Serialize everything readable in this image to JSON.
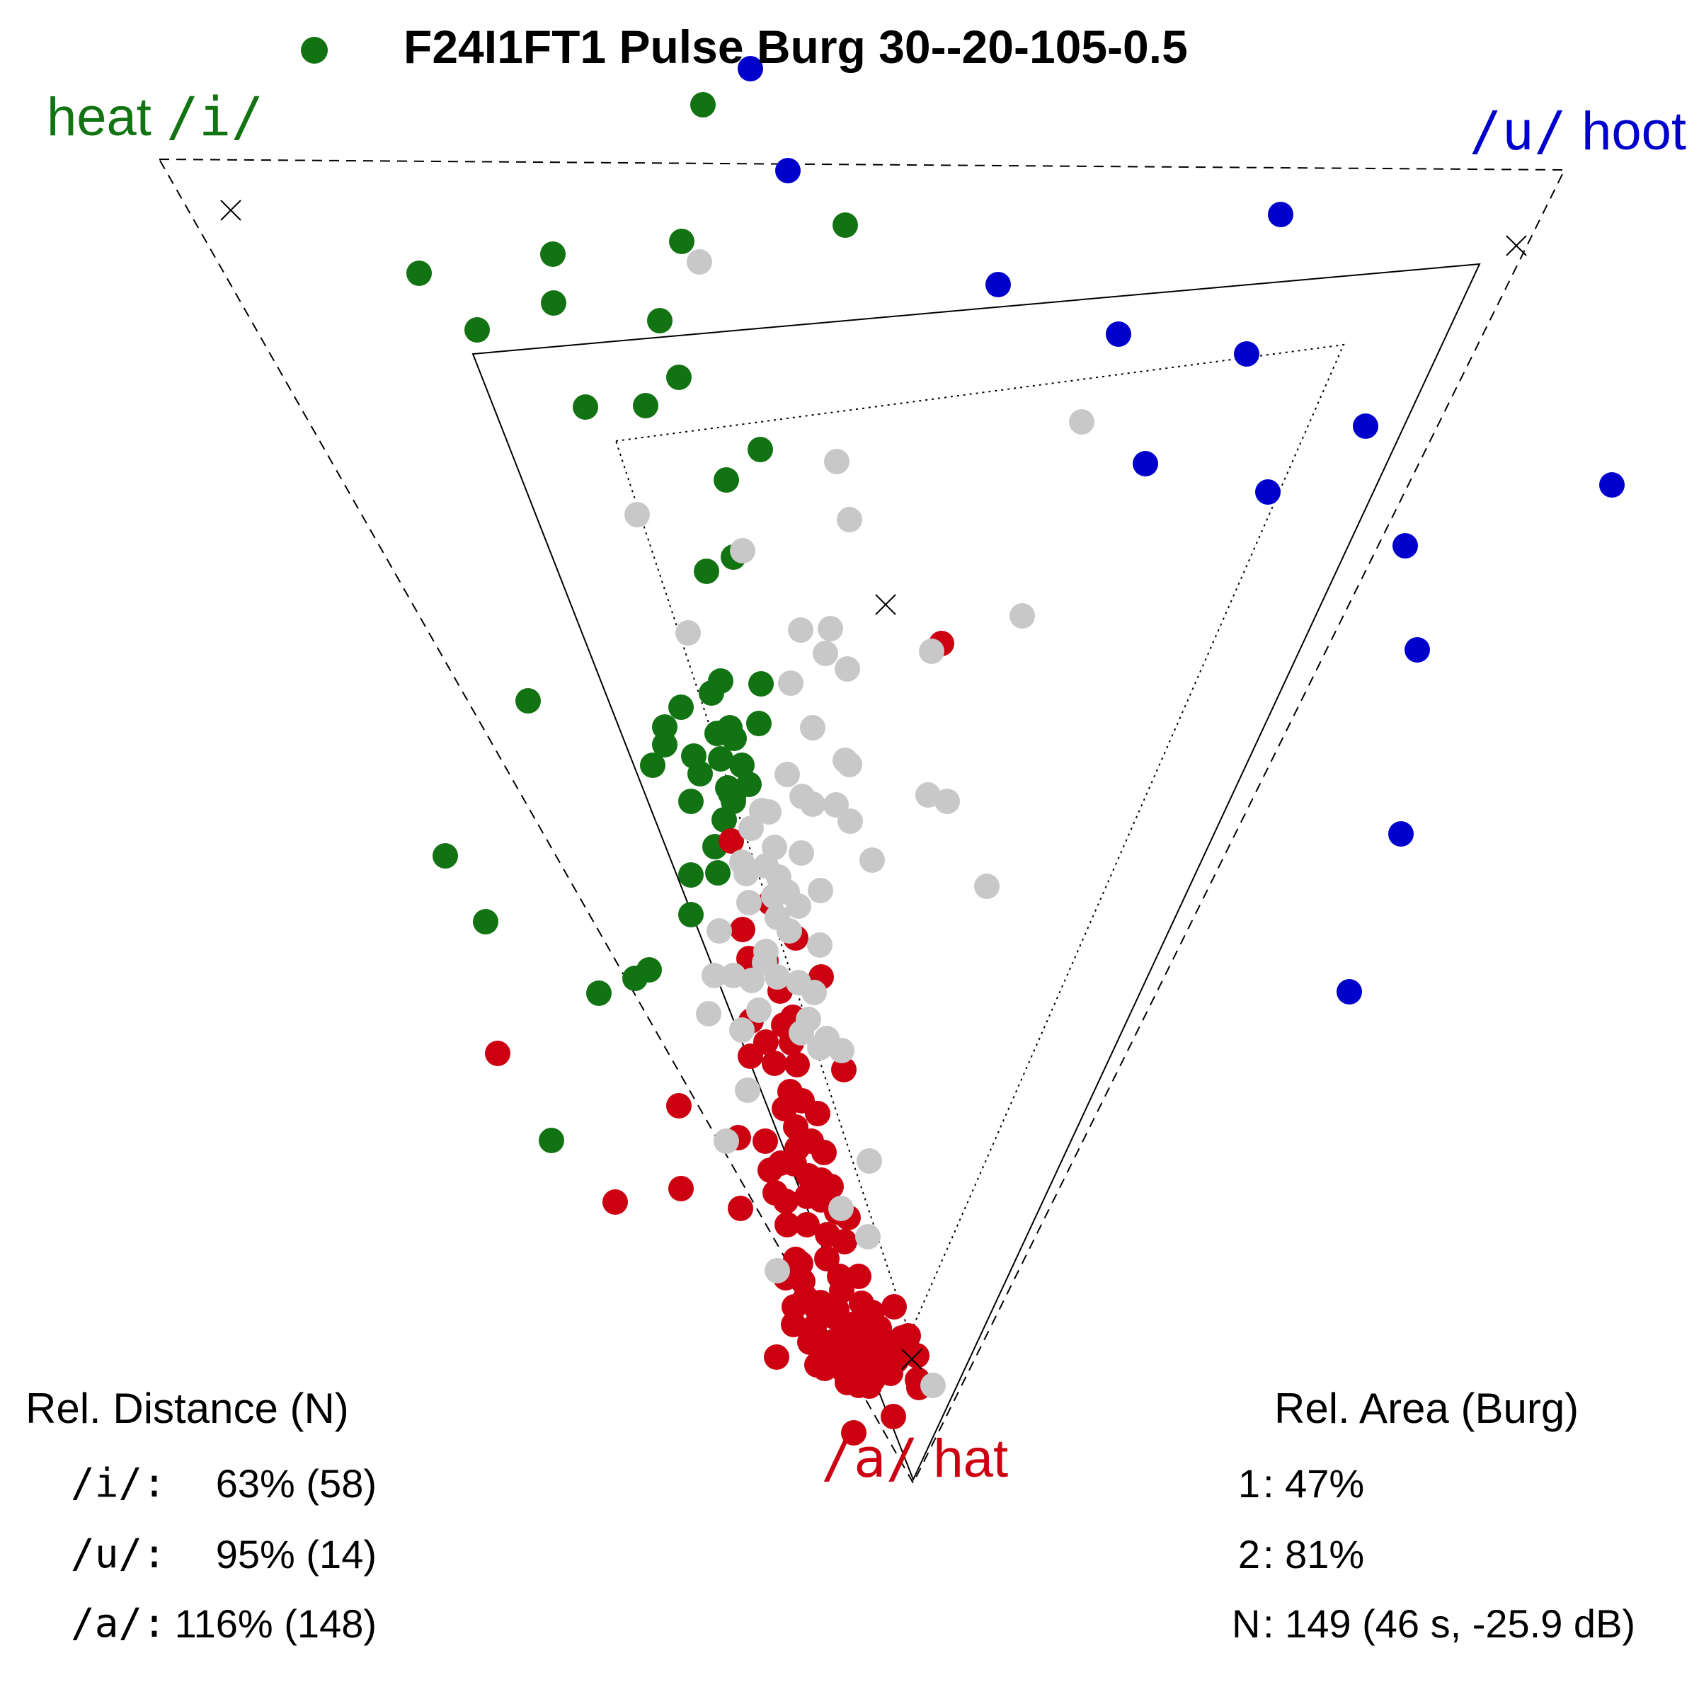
{
  "title": "F24I1FT1 Pulse Burg 30--20-105-0.5",
  "legend_marker_color": "#127312",
  "colors": {
    "i": "#127312",
    "u": "#0000cc",
    "a": "#cc0011",
    "other": "#c8c8c8"
  },
  "vowel_labels": {
    "i": {
      "word": "heat",
      "symbol": "/i/"
    },
    "u": {
      "symbol": "/u/",
      "word": "hoot"
    },
    "a": {
      "symbol": "/a/",
      "word": "hat"
    }
  },
  "rel_distance": {
    "heading": "Rel. Distance (N)",
    "rows": [
      {
        "label": "/i/:",
        "value": "63% (58)"
      },
      {
        "label": "/u/:",
        "value": "95% (14)"
      },
      {
        "label": "/a/:",
        "value": "116% (148)"
      }
    ]
  },
  "rel_area": {
    "heading": "Rel. Area (Burg)",
    "rows": [
      {
        "label": "1",
        "value": ": 47%"
      },
      {
        "label": "2",
        "value": ": 81%"
      },
      {
        "label": "N",
        "value": ": 149 (46 s, -25.9 dB)"
      }
    ]
  },
  "chart_data": {
    "type": "scatter",
    "axes_visible": false,
    "triangles": {
      "reference_dashed": [
        [
          225,
          225
        ],
        [
          2210,
          240
        ],
        [
          1290,
          2095
        ]
      ],
      "area_1_dotted": [
        [
          870,
          623
        ],
        [
          1898,
          487
        ],
        [
          1285,
          1885
        ]
      ],
      "area_2_solid": [
        [
          668,
          500
        ],
        [
          2090,
          373
        ],
        [
          1290,
          2090
        ]
      ]
    },
    "markers_x": [
      [
        326,
        297
      ],
      [
        2142,
        347
      ],
      [
        1251,
        854
      ],
      [
        1288,
        1920
      ]
    ],
    "series": [
      {
        "key": "i",
        "points": [
          [
            993,
            148
          ],
          [
            1194,
            318
          ],
          [
            963,
            341
          ],
          [
            781,
            359
          ],
          [
            592,
            386
          ],
          [
            782,
            428
          ],
          [
            674,
            466
          ],
          [
            932,
            453
          ],
          [
            959,
            533
          ],
          [
            912,
            573
          ],
          [
            827,
            575
          ],
          [
            1074,
            635
          ],
          [
            1026,
            678
          ],
          [
            1036,
            787
          ],
          [
            998,
            807
          ],
          [
            746,
            990
          ],
          [
            1018,
            962
          ],
          [
            1005,
            979
          ],
          [
            1075,
            966
          ],
          [
            962,
            999
          ],
          [
            939,
            1027
          ],
          [
            1013,
            1036
          ],
          [
            939,
            1052
          ],
          [
            1072,
            1022
          ],
          [
            1031,
            1028
          ],
          [
            1037,
            1043
          ],
          [
            1018,
            1072
          ],
          [
            980,
            1068
          ],
          [
            1048,
            1081
          ],
          [
            1058,
            1108
          ],
          [
            1028,
            1113
          ],
          [
            989,
            1093
          ],
          [
            1032,
            1121
          ],
          [
            922,
            1081
          ],
          [
            976,
            1132
          ],
          [
            1036,
            1132
          ],
          [
            1023,
            1158
          ],
          [
            1036,
            1126
          ],
          [
            1010,
            1196
          ],
          [
            629,
            1209
          ],
          [
            976,
            1236
          ],
          [
            1014,
            1233
          ],
          [
            976,
            1292
          ],
          [
            686,
            1302
          ],
          [
            917,
            1370
          ],
          [
            897,
            1382
          ],
          [
            846,
            1403
          ],
          [
            779,
            1611
          ]
        ]
      },
      {
        "key": "u",
        "points": [
          [
            1060,
            97
          ],
          [
            1113,
            241
          ],
          [
            1809,
            303
          ],
          [
            1410,
            402
          ],
          [
            1580,
            472
          ],
          [
            1761,
            500
          ],
          [
            1929,
            602
          ],
          [
            1618,
            655
          ],
          [
            1791,
            695
          ],
          [
            2277,
            685
          ],
          [
            1985,
            771
          ],
          [
            2002,
            918
          ],
          [
            1979,
            1178
          ],
          [
            1906,
            1401
          ]
        ]
      },
      {
        "key": "a",
        "points": [
          [
            1330,
            909
          ],
          [
            1033,
            1188
          ],
          [
            1088,
            1275
          ],
          [
            1124,
            1325
          ],
          [
            1049,
            1313
          ],
          [
            1058,
            1354
          ],
          [
            1082,
            1357
          ],
          [
            1160,
            1380
          ],
          [
            1102,
            1400
          ],
          [
            1120,
            1437
          ],
          [
            1107,
            1448
          ],
          [
            1061,
            1442
          ],
          [
            1094,
            1502
          ],
          [
            1082,
            1472
          ],
          [
            1118,
            1473
          ],
          [
            1126,
            1504
          ],
          [
            1192,
            1511
          ],
          [
            1060,
            1492
          ],
          [
            1116,
            1542
          ],
          [
            1133,
            1555
          ],
          [
            1155,
            1573
          ],
          [
            1108,
            1566
          ],
          [
            1124,
            1592
          ],
          [
            1146,
            1612
          ],
          [
            1081,
            1612
          ],
          [
            1126,
            1622
          ],
          [
            1164,
            1628
          ],
          [
            1122,
            1644
          ],
          [
            1142,
            1661
          ],
          [
            1160,
            1667
          ],
          [
            1174,
            1676
          ],
          [
            1103,
            1643
          ],
          [
            1140,
            1690
          ],
          [
            1088,
            1653
          ],
          [
            1095,
            1685
          ],
          [
            1160,
            1695
          ],
          [
            1182,
            1712
          ],
          [
            1110,
            1697
          ],
          [
            1140,
            1730
          ],
          [
            1169,
            1744
          ],
          [
            1198,
            1720
          ],
          [
            1112,
            1730
          ],
          [
            1193,
            1754
          ],
          [
            1124,
            1779
          ],
          [
            1168,
            1778
          ],
          [
            1134,
            1810
          ],
          [
            1138,
            1833
          ],
          [
            1189,
            1823
          ],
          [
            1213,
            1803
          ],
          [
            1217,
            1841
          ],
          [
            1182,
            1850
          ],
          [
            1232,
            1854
          ],
          [
            1159,
            1840
          ],
          [
            1193,
            1870
          ],
          [
            1240,
            1888
          ],
          [
            1208,
            1890
          ],
          [
            1263,
            1846
          ],
          [
            1150,
            1875
          ],
          [
            1178,
            1895
          ],
          [
            1196,
            1918
          ],
          [
            1171,
            1910
          ],
          [
            1254,
            1911
          ],
          [
            1242,
            1876
          ],
          [
            1121,
            1871
          ],
          [
            1231,
            1943
          ],
          [
            1218,
            1945
          ],
          [
            1208,
            1924
          ],
          [
            1239,
            1913
          ],
          [
            1231,
            1891
          ],
          [
            1218,
            1910
          ],
          [
            1196,
            1943
          ],
          [
            1184,
            1896
          ],
          [
            1154,
            1928
          ],
          [
            1166,
            1920
          ],
          [
            1189,
            1933
          ],
          [
            1175,
            1912
          ],
          [
            1200,
            1893
          ],
          [
            1208,
            1870
          ],
          [
            1237,
            1912
          ],
          [
            1222,
            1937
          ],
          [
            1249,
            1905
          ],
          [
            1264,
            1900
          ],
          [
            1274,
            1890
          ],
          [
            1283,
            1887
          ],
          [
            1295,
            1915
          ],
          [
            1213,
            1957
          ],
          [
            1233,
            1949
          ],
          [
            1228,
            1958
          ],
          [
            1217,
            1946
          ],
          [
            1258,
            1940
          ],
          [
            1244,
            1922
          ],
          [
            1254,
            1935
          ],
          [
            1211,
            1951
          ],
          [
            1197,
            1953
          ],
          [
            1222,
            1926
          ],
          [
            1266,
            1922
          ],
          [
            1205,
            1945
          ],
          [
            1165,
            1933
          ],
          [
            1144,
            1896
          ],
          [
            1097,
            1917
          ],
          [
            1046,
            1707
          ],
          [
            1043,
            1607
          ],
          [
            959,
            1562
          ],
          [
            962,
            1679
          ],
          [
            869,
            1698
          ],
          [
            703,
            1488
          ],
          [
            1296,
            1949
          ],
          [
            1298,
            1960
          ],
          [
            1262,
            2001
          ],
          [
            1206,
            2024
          ],
          [
            1235,
            1916
          ],
          [
            1178,
            1860
          ],
          [
            1154,
            1849
          ],
          [
            1122,
            1846
          ],
          [
            1131,
            1785
          ],
          [
            1186,
            1803
          ],
          [
            1110,
            1805
          ]
        ]
      },
      {
        "key": "other",
        "points": [
          [
            988,
            370
          ],
          [
            1528,
            596
          ],
          [
            1182,
            652
          ],
          [
            900,
            727
          ],
          [
            1049,
            778
          ],
          [
            1200,
            734
          ],
          [
            1444,
            870
          ],
          [
            972,
            894
          ],
          [
            1131,
            890
          ],
          [
            1173,
            888
          ],
          [
            1316,
            920
          ],
          [
            1166,
            923
          ],
          [
            1197,
            945
          ],
          [
            1117,
            965
          ],
          [
            1148,
            1028
          ],
          [
            1194,
            1074
          ],
          [
            1200,
            1080
          ],
          [
            1112,
            1094
          ],
          [
            1133,
            1125
          ],
          [
            1311,
            1123
          ],
          [
            1338,
            1132
          ],
          [
            1148,
            1136
          ],
          [
            1181,
            1137
          ],
          [
            1201,
            1160
          ],
          [
            1086,
            1147
          ],
          [
            1076,
            1145
          ],
          [
            1061,
            1170
          ],
          [
            1094,
            1197
          ],
          [
            1232,
            1215
          ],
          [
            1132,
            1205
          ],
          [
            1048,
            1218
          ],
          [
            1082,
            1223
          ],
          [
            1054,
            1234
          ],
          [
            1100,
            1239
          ],
          [
            1112,
            1260
          ],
          [
            1159,
            1258
          ],
          [
            1394,
            1252
          ],
          [
            1093,
            1266
          ],
          [
            1058,
            1275
          ],
          [
            1128,
            1280
          ],
          [
            1098,
            1296
          ],
          [
            1115,
            1315
          ],
          [
            1016,
            1315
          ],
          [
            1082,
            1344
          ],
          [
            1080,
            1360
          ],
          [
            1158,
            1335
          ],
          [
            1009,
            1378
          ],
          [
            1036,
            1378
          ],
          [
            1062,
            1385
          ],
          [
            1098,
            1380
          ],
          [
            1128,
            1388
          ],
          [
            1150,
            1402
          ],
          [
            1142,
            1440
          ],
          [
            1072,
            1427
          ],
          [
            1001,
            1432
          ],
          [
            1048,
            1455
          ],
          [
            1168,
            1467
          ],
          [
            1158,
            1480
          ],
          [
            1189,
            1484
          ],
          [
            1132,
            1459
          ],
          [
            1056,
            1540
          ],
          [
            1026,
            1612
          ],
          [
            1228,
            1640
          ],
          [
            1188,
            1707
          ],
          [
            1226,
            1747
          ],
          [
            1098,
            1795
          ],
          [
            1318,
            1957
          ]
        ]
      }
    ]
  }
}
